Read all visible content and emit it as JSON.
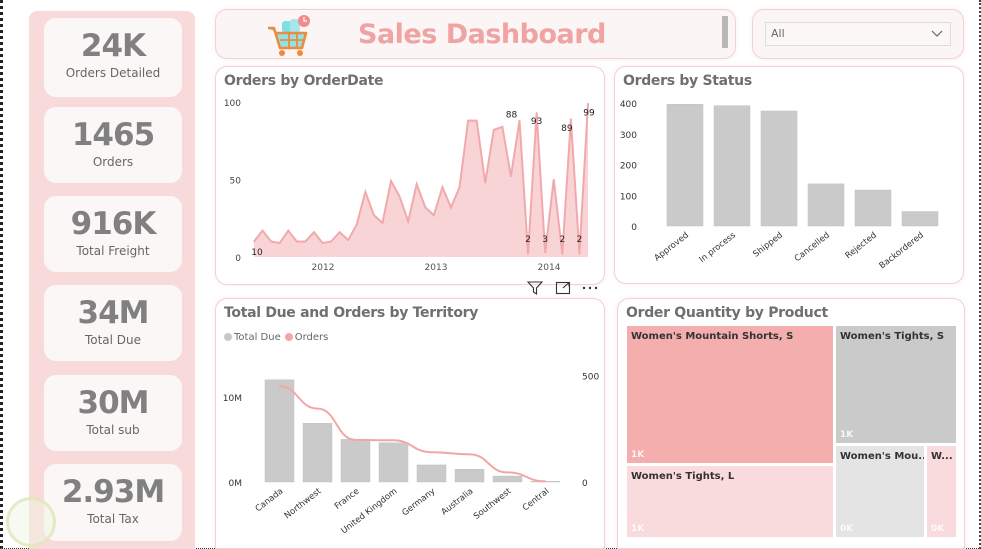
{
  "header": {
    "title": "Sales Dashboard",
    "logo_icon": "shopping-cart-icon"
  },
  "slicer": {
    "selected": "All",
    "icon": "chevron-down-icon"
  },
  "kpis": [
    {
      "value": "24K",
      "label": "Orders Detailed"
    },
    {
      "value": "1465",
      "label": "Orders"
    },
    {
      "value": "916K",
      "label": "Total Freight"
    },
    {
      "value": "34M",
      "label": "Total Due"
    },
    {
      "value": "30M",
      "label": "Total sub"
    },
    {
      "value": "2.93M",
      "label": "Total Tax"
    }
  ],
  "visual_toolbar": {
    "filter_icon": "filter-icon",
    "focus_icon": "focus-mode-icon",
    "more_icon": "more-options-icon"
  },
  "colors": {
    "accent_pink": "#f0a3a3",
    "area_fill": "#f9d4d6",
    "bar_gray": "#cacaca",
    "panel_pink": "#f9dada"
  },
  "chart_data": [
    {
      "id": "orders-by-orderdate",
      "type": "area",
      "title": "Orders by OrderDate",
      "xlabel": "",
      "ylabel": "",
      "ylim": [
        0,
        100
      ],
      "yticks": [
        "0",
        "50",
        "100"
      ],
      "xticks": [
        "2012",
        "2013",
        "2014"
      ],
      "grid": false,
      "values": [
        10,
        17,
        10,
        9,
        17,
        10,
        10,
        16,
        9,
        10,
        16,
        11,
        21,
        42,
        27,
        22,
        49,
        39,
        23,
        47,
        32,
        27,
        45,
        32,
        45,
        88,
        88,
        48,
        82,
        84,
        52,
        88,
        2,
        93,
        3,
        50,
        2,
        89,
        2,
        99
      ],
      "data_labels": [
        {
          "index": 0,
          "text": "10"
        },
        {
          "index": 31,
          "text": "88"
        },
        {
          "index": 32,
          "text": "2"
        },
        {
          "index": 33,
          "text": "93"
        },
        {
          "index": 34,
          "text": "3"
        },
        {
          "index": 36,
          "text": "2"
        },
        {
          "index": 37,
          "text": "89"
        },
        {
          "index": 38,
          "text": "2"
        },
        {
          "index": 39,
          "text": "99"
        }
      ]
    },
    {
      "id": "orders-by-status",
      "type": "bar",
      "title": "Orders by Status",
      "categories": [
        "Approved",
        "In process",
        "Shipped",
        "Cancelled",
        "Rejected",
        "Backordered"
      ],
      "values": [
        396,
        391,
        374,
        137,
        117,
        47
      ],
      "ylim": [
        0,
        400
      ],
      "yticks": [
        "0",
        "100",
        "200",
        "300",
        "400"
      ],
      "xlabel": "",
      "ylabel": ""
    },
    {
      "id": "total-due-orders-by-territory",
      "type": "bar",
      "title": "Total Due and Orders by Territory",
      "legend": [
        {
          "name": "Total Due",
          "color": "#c8c8c8"
        },
        {
          "name": "Orders",
          "color": "#f4a6a6"
        }
      ],
      "legend_position": "top-left",
      "categories": [
        "Canada",
        "Northwest",
        "France",
        "United Kingdom",
        "Germany",
        "Australia",
        "Southwest",
        "Central"
      ],
      "series": [
        {
          "name": "Total Due",
          "axis": "left",
          "type": "bar",
          "values": [
            12000000,
            6900000,
            5000000,
            4600000,
            2000000,
            1500000,
            700000,
            80000
          ]
        },
        {
          "name": "Orders",
          "axis": "right",
          "type": "line",
          "values": [
            450,
            345,
            198,
            196,
            140,
            130,
            45,
            3
          ]
        }
      ],
      "y_left": {
        "ylim": [
          0,
          13500000
        ],
        "ticks": [
          {
            "v": 0,
            "t": "0M"
          },
          {
            "v": 10000000,
            "t": "10M"
          }
        ]
      },
      "y_right": {
        "ylim": [
          0,
          625
        ],
        "ticks": [
          {
            "v": 0,
            "t": "0"
          },
          {
            "v": 500,
            "t": "500"
          }
        ]
      }
    },
    {
      "id": "order-quantity-by-product",
      "type": "treemap",
      "title": "Order Quantity by Product",
      "items": [
        {
          "name": "Women's Mountain Shorts, S",
          "label": "Women's Mountain Shorts, S",
          "value_label": "1K",
          "color": "#f4aeae"
        },
        {
          "name": "Women's Tights, S",
          "label": "Women's Tights, S",
          "value_label": "1K",
          "color": "#cacaca"
        },
        {
          "name": "Women's Tights, L",
          "label": "Women's Tights, L",
          "value_label": "1K",
          "color": "#f9dbdd"
        },
        {
          "name": "Women's Mountain Shorts",
          "label": "Women's Mou...",
          "value_label": "0K",
          "color": "#e4e4e4"
        },
        {
          "name": "W...",
          "label": "W...",
          "value_label": "0K",
          "color": "#f9dbdd"
        }
      ]
    }
  ]
}
